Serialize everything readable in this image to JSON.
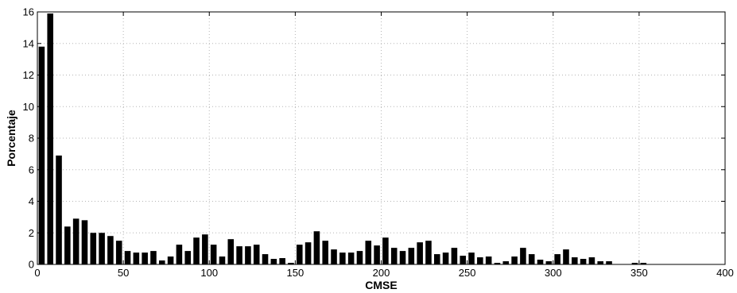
{
  "chart_data": {
    "type": "bar",
    "title": "",
    "xlabel": "CMSE",
    "ylabel": "Porcentaje",
    "xlim": [
      0,
      400
    ],
    "ylim": [
      0,
      16
    ],
    "xticks": [
      0,
      50,
      100,
      150,
      200,
      250,
      300,
      350,
      400
    ],
    "yticks": [
      0,
      2,
      4,
      6,
      8,
      10,
      12,
      14,
      16
    ],
    "grid": true,
    "bar_color": "#000000",
    "bar_width": 3.5,
    "x": [
      2.5,
      7.5,
      12.5,
      17.5,
      22.5,
      27.5,
      32.5,
      37.5,
      42.5,
      47.5,
      52.5,
      57.5,
      62.5,
      67.5,
      72.5,
      77.5,
      82.5,
      87.5,
      92.5,
      97.5,
      102.5,
      107.5,
      112.5,
      117.5,
      122.5,
      127.5,
      132.5,
      137.5,
      142.5,
      147.5,
      152.5,
      157.5,
      162.5,
      167.5,
      172.5,
      177.5,
      182.5,
      187.5,
      192.5,
      197.5,
      202.5,
      207.5,
      212.5,
      217.5,
      222.5,
      227.5,
      232.5,
      237.5,
      242.5,
      247.5,
      252.5,
      257.5,
      262.5,
      267.5,
      272.5,
      277.5,
      282.5,
      287.5,
      292.5,
      297.5,
      302.5,
      307.5,
      312.5,
      317.5,
      322.5,
      327.5,
      332.5,
      337.5,
      342.5,
      347.5,
      352.5,
      357.5,
      362.5,
      367.5,
      372.5,
      377.5,
      382.5,
      387.5,
      392.5
    ],
    "values": [
      13.8,
      15.9,
      6.9,
      2.4,
      2.9,
      2.8,
      2.0,
      2.0,
      1.8,
      1.5,
      0.85,
      0.75,
      0.75,
      0.85,
      0.25,
      0.5,
      1.25,
      0.85,
      1.7,
      1.9,
      1.25,
      0.5,
      1.6,
      1.15,
      1.15,
      1.25,
      0.65,
      0.35,
      0.4,
      0.1,
      1.25,
      1.4,
      2.1,
      1.5,
      0.95,
      0.75,
      0.75,
      0.85,
      1.5,
      1.2,
      1.7,
      1.05,
      0.85,
      1.05,
      1.4,
      1.5,
      0.65,
      0.75,
      1.05,
      0.55,
      0.75,
      0.45,
      0.5,
      0.1,
      0.2,
      0.5,
      1.05,
      0.65,
      0.3,
      0.2,
      0.65,
      0.95,
      0.45,
      0.35,
      0.45,
      0.2,
      0.2,
      0.0,
      0.0,
      0.1,
      0.1,
      0,
      0,
      0,
      0,
      0,
      0,
      0,
      0
    ]
  }
}
